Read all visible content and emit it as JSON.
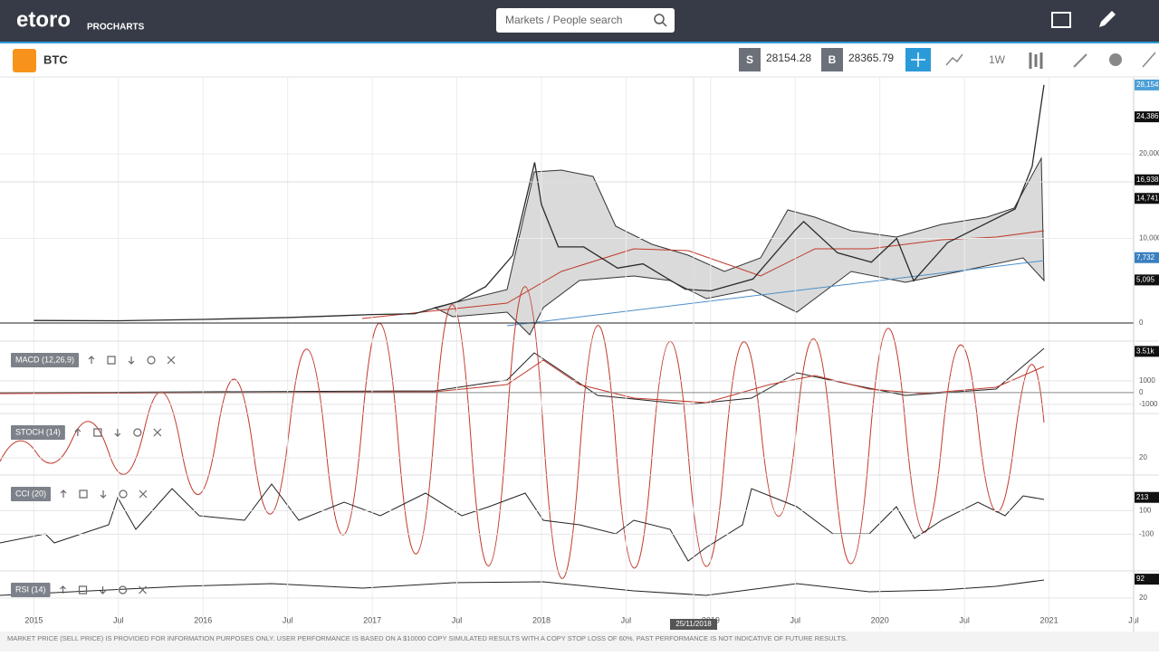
{
  "header": {
    "logo": "etoro",
    "logo_sub": "PROCHARTS",
    "search_placeholder": "Markets / People search"
  },
  "toolbar": {
    "symbol": "BTC",
    "sell_label": "S",
    "sell_price": "28154.28",
    "buy_label": "B",
    "buy_price": "28365.79",
    "timeframe": "1W"
  },
  "chart_data": {
    "type": "line",
    "color": "#2b2b2b",
    "x": [
      2015.0,
      2015.5,
      2016.0,
      2016.5,
      2017.0,
      2017.25,
      2017.5,
      2017.67,
      2017.83,
      2017.96,
      2018.0,
      2018.1,
      2018.25,
      2018.45,
      2018.6,
      2018.85,
      2019.0,
      2019.25,
      2019.5,
      2019.55,
      2019.75,
      2019.95,
      2020.1,
      2020.2,
      2020.4,
      2020.6,
      2020.8,
      2020.9,
      2020.97
    ],
    "values": [
      300,
      270,
      430,
      650,
      1000,
      1100,
      2500,
      4300,
      8000,
      19000,
      14000,
      9000,
      9000,
      6500,
      7000,
      4000,
      3800,
      5200,
      11000,
      12000,
      8300,
      7200,
      10000,
      5000,
      9500,
      11500,
      13500,
      18500,
      28154
    ],
    "xlim": [
      2014.8,
      2021.5
    ],
    "xticks": [
      2015,
      {
        "value": 2015.5,
        "label": "Jul"
      },
      2016,
      {
        "value": 2016.5,
        "label": "Jul"
      },
      2017,
      {
        "value": 2017.5,
        "label": "Jul"
      },
      2018,
      {
        "value": 2018.5,
        "label": "Jul"
      },
      2019,
      {
        "value": 2019.5,
        "label": "Jul"
      },
      2020,
      {
        "value": 2020.5,
        "label": "Jul"
      },
      2021,
      {
        "value": 2021.5,
        "label": "Jul"
      }
    ],
    "ylim": [
      0,
      29000
    ],
    "yticks": [
      0,
      {
        "value": 10000,
        "label": "10,000"
      },
      {
        "value": 20000,
        "label": "20,000"
      }
    ],
    "price_tags": [
      {
        "value": 28154,
        "label": "28,154",
        "color": "#4a9fd6"
      },
      {
        "value": 24386,
        "label": "24,386",
        "color": "#111111"
      },
      {
        "value": 16938,
        "label": "16,938",
        "color": "#111111"
      },
      {
        "value": 14741,
        "label": "14,741",
        "color": "#111111"
      },
      {
        "value": 7732,
        "label": "7,732",
        "color": "#3a7fc0"
      },
      {
        "value": 5095,
        "label": "5,095",
        "color": "#111111"
      }
    ],
    "cursor_date": "25/11/2018"
  },
  "panels": [
    {
      "label": "MACD (12,26,9)",
      "ylim": [
        -1700,
        4150
      ],
      "yticks": [
        -1000,
        0,
        1000
      ],
      "tag": {
        "value": 3510,
        "label": "3.51k"
      }
    },
    {
      "label": "STOCH (14)",
      "ylim": [
        -10,
        106
      ],
      "yticks": [
        20
      ]
    },
    {
      "label": "CCI (20)",
      "ylim": [
        -420,
        380
      ],
      "yticks": [
        -100,
        100
      ],
      "tag": {
        "value": 213,
        "label": "213"
      }
    },
    {
      "label": "RSI (14)",
      "ylim": [
        -18,
        113
      ],
      "yticks": [
        20
      ],
      "tag": {
        "value": 92,
        "label": "92"
      }
    }
  ],
  "footer": "MARKET PRICE (SELL PRICE) IS PROVIDED FOR INFORMATION PURPOSES ONLY. USER PERFORMANCE IS BASED ON A $10000 COPY SIMULATED RESULTS WITH A COPY STOP LOSS OF 60%. PAST PERFORMANCE IS NOT INDICATIVE OF FUTURE RESULTS."
}
